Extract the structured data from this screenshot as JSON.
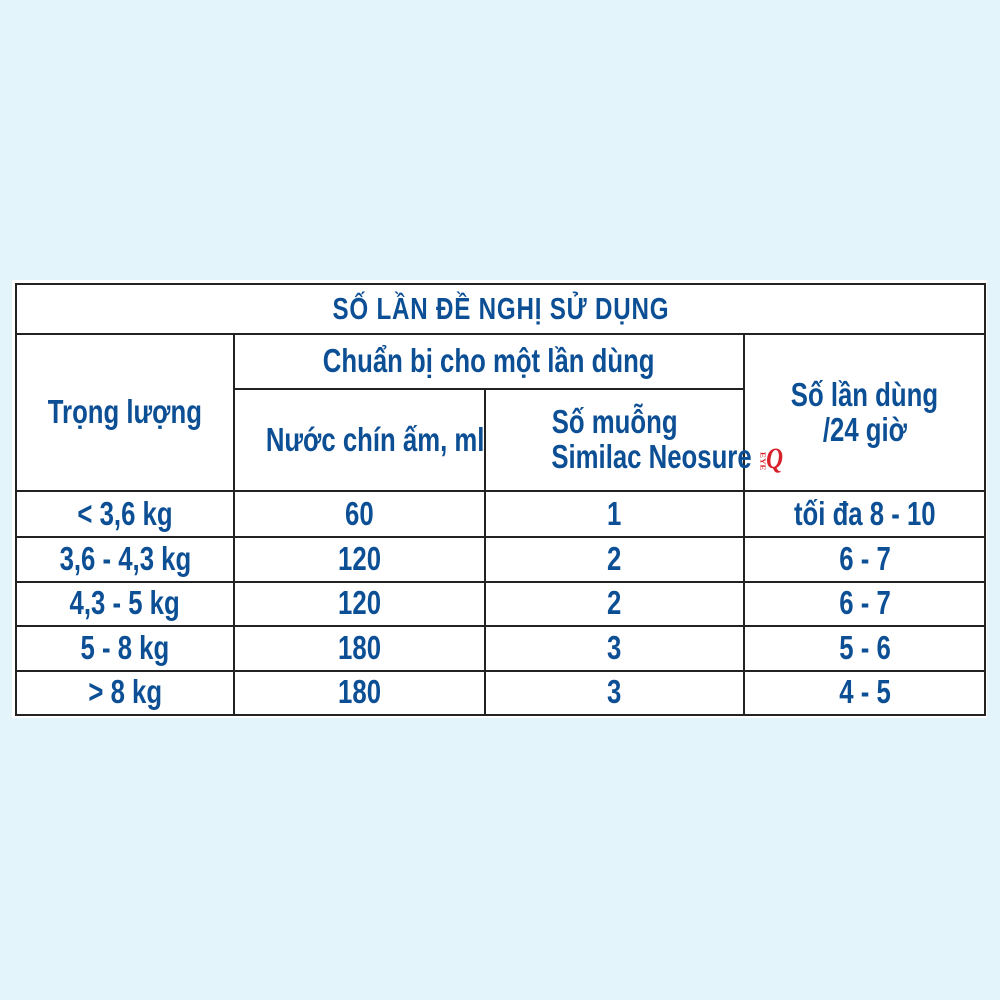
{
  "title": "SỐ LẦN ĐỀ NGHỊ SỬ DỤNG",
  "headers": {
    "weight": "Trọng lượng",
    "prep": "Chuẩn bị cho một lần dùng",
    "water": "Nước chín ấm, ml",
    "scoops_line1": "Số muỗng",
    "scoops_line2": "Similac Neosure",
    "logo": "EyeQ",
    "times_line1": "Số lần dùng",
    "times_line2": "/24 giờ"
  },
  "colors": {
    "text": "#0d4f95",
    "background": "#e3f5fb",
    "logo": "#d8202a"
  },
  "rows": [
    {
      "weight": "< 3,6 kg",
      "water": "60",
      "scoops": "1",
      "times": "tối đa 8 - 10"
    },
    {
      "weight": "3,6 - 4,3 kg",
      "water": "120",
      "scoops": "2",
      "times": "6 - 7"
    },
    {
      "weight": "4,3 - 5 kg",
      "water": "120",
      "scoops": "2",
      "times": "6 - 7"
    },
    {
      "weight": "5 - 8 kg",
      "water": "180",
      "scoops": "3",
      "times": "5 - 6"
    },
    {
      "weight": "> 8 kg",
      "water": "180",
      "scoops": "3",
      "times": "4 - 5"
    }
  ]
}
